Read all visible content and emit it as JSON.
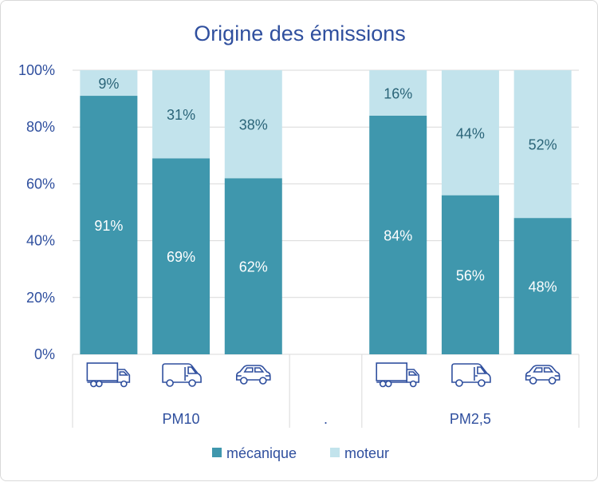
{
  "chart_data": {
    "type": "bar",
    "stacked": true,
    "title": "Origine des émissions",
    "xlabel": "",
    "ylabel": "",
    "ylim": [
      0,
      100
    ],
    "y_ticks": [
      "0%",
      "20%",
      "40%",
      "60%",
      "80%",
      "100%"
    ],
    "grid": true,
    "groups": [
      {
        "label": "PM10",
        "categories": [
          {
            "icon": "truck-icon",
            "mecanique": 91,
            "moteur": 9
          },
          {
            "icon": "van-icon",
            "mecanique": 69,
            "moteur": 31
          },
          {
            "icon": "car-icon",
            "mecanique": 62,
            "moteur": 38
          }
        ]
      },
      {
        "label": ".",
        "categories": []
      },
      {
        "label": "PM2,5",
        "categories": [
          {
            "icon": "truck-icon",
            "mecanique": 84,
            "moteur": 16
          },
          {
            "icon": "van-icon",
            "mecanique": 56,
            "moteur": 44
          },
          {
            "icon": "car-icon",
            "mecanique": 48,
            "moteur": 52
          }
        ]
      }
    ],
    "series": [
      {
        "name": "mécanique",
        "color": "#3f97ad"
      },
      {
        "name": "moteur",
        "color": "#c2e3ec"
      }
    ],
    "legend_position": "bottom"
  }
}
